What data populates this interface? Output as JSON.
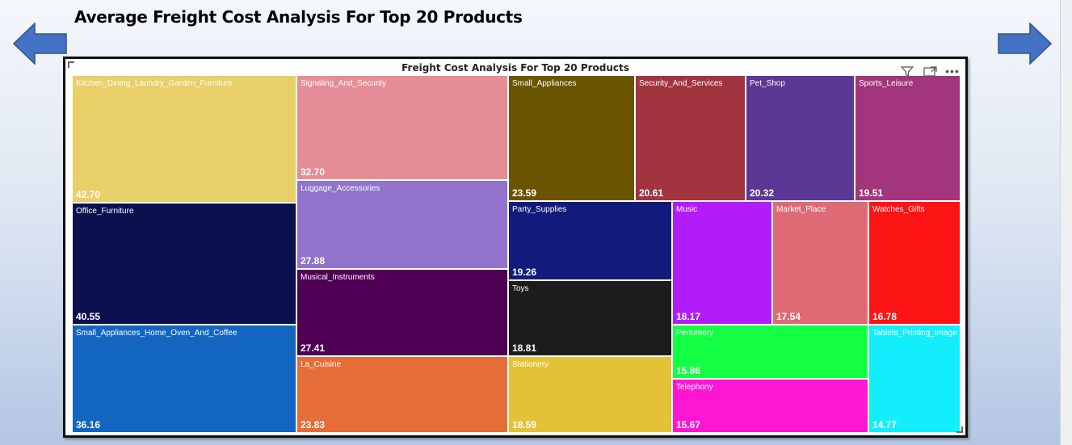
{
  "slide": {
    "title": "Average Freight Cost Analysis For Top 20 Products"
  },
  "navigation": {
    "prev_icon": "arrow-left-icon",
    "next_icon": "arrow-right-icon",
    "arrow_color": "#4472c4"
  },
  "visual": {
    "toolbar_icons": [
      "filter-icon",
      "focus-mode-icon",
      "more-options-icon"
    ]
  },
  "chart_data": {
    "type": "treemap",
    "title": "Freight Cost Analysis For Top 20 Products",
    "value_format": "0.00",
    "items": [
      {
        "name": "Kitchen_Dining_Laundry_Garden_Furniture",
        "value": 42.7,
        "color": "#e8cf67"
      },
      {
        "name": "Office_Furniture",
        "value": 40.55,
        "color": "#0b114f"
      },
      {
        "name": "Small_Appliances_Home_Oven_And_Coffee",
        "value": 36.16,
        "color": "#1266c0"
      },
      {
        "name": "Signaling_And_Security",
        "value": 32.7,
        "color": "#e58d96"
      },
      {
        "name": "Luggage_Accessories",
        "value": 27.88,
        "color": "#9173cc"
      },
      {
        "name": "Musical_Instruments",
        "value": 27.41,
        "color": "#4f0055"
      },
      {
        "name": "La_Cuisine",
        "value": 23.83,
        "color": "#e56d38"
      },
      {
        "name": "Small_Appliances",
        "value": 23.59,
        "color": "#6a5400"
      },
      {
        "name": "Security_And_Services",
        "value": 20.61,
        "color": "#a23440"
      },
      {
        "name": "Pet_Shop",
        "value": 20.32,
        "color": "#5b3894"
      },
      {
        "name": "Sports_Leisure",
        "value": 19.51,
        "color": "#a3357c"
      },
      {
        "name": "Party_Supplies",
        "value": 19.26,
        "color": "#121b7b"
      },
      {
        "name": "Toys",
        "value": 18.81,
        "color": "#1c1c1c"
      },
      {
        "name": "Stationery",
        "value": 18.59,
        "color": "#e3c236"
      },
      {
        "name": "Music",
        "value": 18.17,
        "color": "#b21cf9"
      },
      {
        "name": "Market_Place",
        "value": 17.54,
        "color": "#de6b73"
      },
      {
        "name": "Watches_Gifts",
        "value": 16.78,
        "color": "#fd1414"
      },
      {
        "name": "Perfumery",
        "value": 15.86,
        "color": "#13ff43"
      },
      {
        "name": "Telephony",
        "value": 15.67,
        "color": "#ff16d4"
      },
      {
        "name": "Tablets_Printing_Image",
        "value": 14.77,
        "color": "#12eefc"
      }
    ]
  }
}
